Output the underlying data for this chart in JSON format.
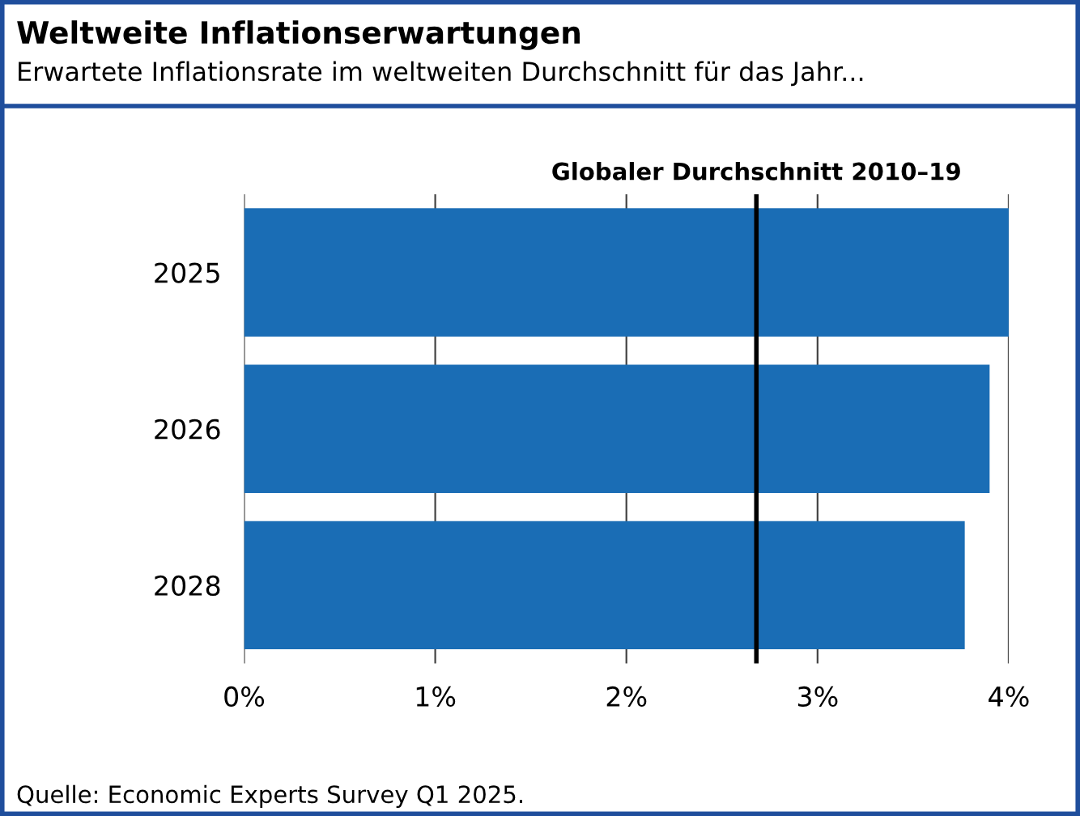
{
  "chart_data": {
    "type": "bar",
    "orientation": "horizontal",
    "title": "Weltweite Inflationserwartungen",
    "subtitle": "Erwartete Inflationsrate im weltweiten Durchschnitt für das Jahr...",
    "categories": [
      "2025",
      "2026",
      "2028"
    ],
    "values": [
      4.0,
      3.9,
      3.77
    ],
    "color": "#1a6db5",
    "xlim": [
      0,
      4
    ],
    "xticks": [
      {
        "value": 0,
        "label": "0%"
      },
      {
        "value": 1,
        "label": "1%"
      },
      {
        "value": 2,
        "label": "2%"
      },
      {
        "value": 3,
        "label": "3%"
      },
      {
        "value": 4,
        "label": "4%"
      }
    ],
    "grid": "x",
    "ref_lines": [
      {
        "axis": "x",
        "value": 2.68,
        "label": "Globaler Durchschnitt 2010–19",
        "color": "#000000"
      }
    ],
    "annotations": [
      "Quelle: Economic Experts Survey Q1 2025."
    ]
  }
}
